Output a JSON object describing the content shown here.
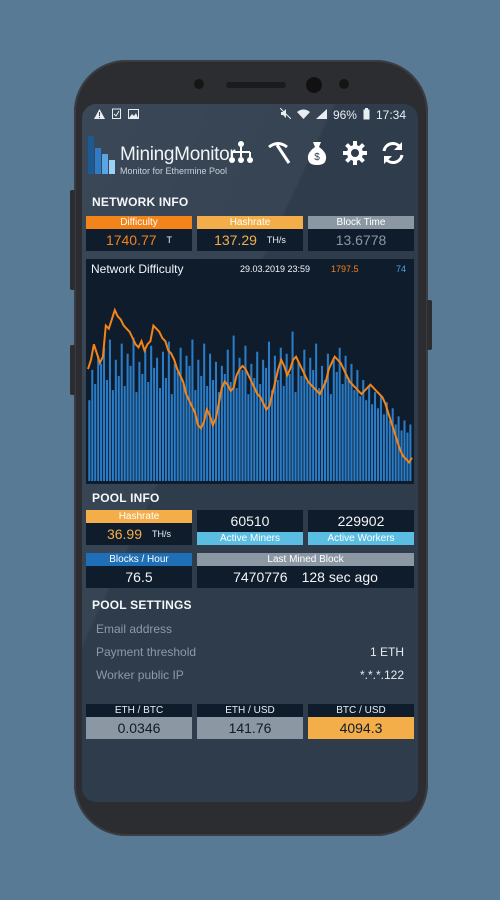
{
  "status_bar": {
    "battery": "96%",
    "time": "17:34"
  },
  "app": {
    "title": "MiningMonitor",
    "subtitle": "Monitor for Ethermine Pool"
  },
  "header_icons": [
    "network-tree-icon",
    "pickaxe-icon",
    "money-bag-icon",
    "gear-icon",
    "refresh-icon"
  ],
  "network_info": {
    "title": "NETWORK INFO",
    "difficulty": {
      "label": "Difficulty",
      "value": "1740.77",
      "unit": "T"
    },
    "hashrate": {
      "label": "Hashrate",
      "value": "137.29",
      "unit": "TH/s"
    },
    "block_time": {
      "label": "Block Time",
      "value": "13.6778"
    }
  },
  "chart": {
    "title": "Network Difficulty",
    "date": "29.03.2019 23:59",
    "value_orange": "1797.5",
    "value_blue": "74",
    "colors": {
      "line": "#f2841a",
      "bars": "#2a7cc7"
    }
  },
  "chart_data": {
    "type": "bar",
    "title": "Network Difficulty",
    "series": [
      {
        "name": "1797.5",
        "kind": "line",
        "values": [
          1560,
          1590,
          1640,
          1610,
          1580,
          1600,
          1700,
          1690,
          1720,
          1750,
          1730,
          1720,
          1700,
          1690,
          1680,
          1660,
          1640,
          1630,
          1650,
          1620,
          1640,
          1650,
          1700,
          1690,
          1680,
          1660,
          1650,
          1620,
          1610,
          1590,
          1560,
          1540,
          1520,
          1480,
          1460,
          1440,
          1420,
          1380,
          1370,
          1390,
          1430,
          1410,
          1380,
          1400,
          1450,
          1500,
          1520,
          1510,
          1490,
          1500,
          1540,
          1560,
          1570,
          1560,
          1540,
          1520,
          1500,
          1480,
          1470,
          1450,
          1430,
          1440,
          1480,
          1520,
          1560,
          1590,
          1570,
          1540,
          1560,
          1590,
          1600,
          1580,
          1560,
          1540,
          1520,
          1510,
          1500,
          1490,
          1480,
          1500,
          1520,
          1560,
          1580,
          1600,
          1590,
          1580,
          1560,
          1540,
          1520,
          1510,
          1500,
          1490,
          1480,
          1490,
          1500,
          1510,
          1500,
          1490,
          1480,
          1470,
          1450,
          1420,
          1390,
          1360,
          1330,
          1300,
          1280,
          1270,
          1260,
          1275
        ]
      },
      {
        "name": "74",
        "kind": "bar",
        "values": [
          40,
          55,
          48,
          62,
          58,
          66,
          50,
          70,
          45,
          60,
          52,
          68,
          47,
          63,
          57,
          71,
          44,
          59,
          53,
          65,
          49,
          67,
          56,
          61,
          46,
          64,
          51,
          69,
          43,
          58,
          54,
          66,
          48,
          62,
          57,
          70,
          45,
          60,
          52,
          68,
          47,
          63,
          50,
          59,
          44,
          57,
          53,
          65,
          49,
          72,
          46,
          61,
          55,
          67,
          43,
          58,
          51,
          64,
          48,
          60,
          56,
          69,
          45,
          62,
          50,
          66,
          47,
          63,
          53,
          74,
          44,
          59,
          52,
          65,
          49,
          61,
          55,
          68,
          46,
          57,
          50,
          63,
          43,
          60,
          54,
          66,
          48,
          62,
          51,
          58,
          45,
          55,
          42,
          50,
          40,
          47,
          38,
          44,
          36,
          42,
          33,
          39,
          30,
          36,
          28,
          32,
          25,
          30,
          24,
          28
        ]
      }
    ]
  },
  "pool_info": {
    "title": "POOL INFO",
    "hashrate": {
      "label": "Hashrate",
      "value": "36.99",
      "unit": "TH/s"
    },
    "active_miners": {
      "label": "Active Miners",
      "value": "60510"
    },
    "active_workers": {
      "label": "Active Workers",
      "value": "229902"
    },
    "blocks_hour": {
      "label": "Blocks / Hour",
      "value": "76.5"
    },
    "last_mined": {
      "label": "Last Mined Block",
      "block": "7470776",
      "ago": "128 sec ago"
    }
  },
  "pool_settings": {
    "title": "POOL SETTINGS",
    "email": {
      "label": "Email address",
      "value": ""
    },
    "threshold": {
      "label": "Payment threshold",
      "value": "1 ETH"
    },
    "worker_ip": {
      "label": "Worker public IP",
      "value": "*.*.*.122"
    }
  },
  "prices": {
    "eth_btc": {
      "label": "ETH / BTC",
      "value": "0.0346"
    },
    "eth_usd": {
      "label": "ETH / USD",
      "value": "141.76"
    },
    "btc_usd": {
      "label": "BTC / USD",
      "value": "4094.3"
    }
  }
}
